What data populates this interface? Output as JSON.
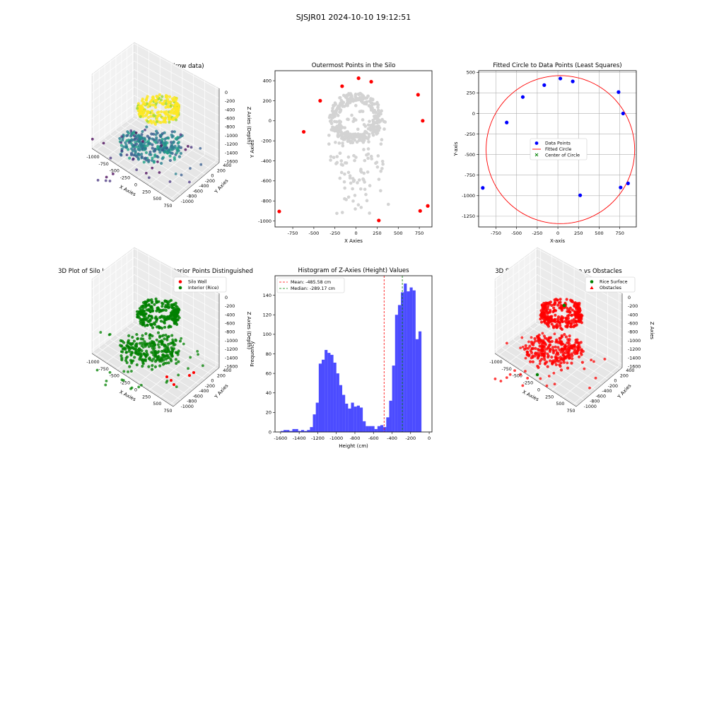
{
  "suptitle": "SJSJR01 2024-10-10 19:12:51",
  "chart_data": [
    {
      "id": "p1",
      "type": "scatter",
      "projection": "3d",
      "title": "3D Plot of Silo Interior(row data)",
      "xlabel": "X Axies",
      "ylabel": "Y Axies",
      "zlabel": "Z Axies (Depth)",
      "xticks": [
        "-1000",
        "-750",
        "-500",
        "-250",
        "0",
        "250",
        "500",
        "750"
      ],
      "yticks": [
        "400",
        "200",
        "0",
        "-200",
        "-400",
        "-600",
        "-800",
        "-1000"
      ],
      "zticks": [
        "0",
        "-200",
        "-400",
        "-600",
        "-800",
        "-1000",
        "-1200",
        "-1400",
        "-1600"
      ],
      "colormap": "viridis"
    },
    {
      "id": "p2",
      "type": "scatter",
      "title": "Outermost Points in the Silo",
      "xlabel": "X Axies",
      "ylabel": "Y Axies",
      "xlim": [
        -960,
        900
      ],
      "ylim": [
        -1060,
        500
      ],
      "xticks": [
        -750,
        -500,
        -250,
        0,
        250,
        500,
        750
      ],
      "yticks": [
        400,
        200,
        0,
        -200,
        -400,
        -600,
        -800,
        -1000
      ],
      "interior_color": "#d3d3d3",
      "outer_color": "#ff0000",
      "outer_points": [
        {
          "x": 30,
          "y": 425
        },
        {
          "x": 180,
          "y": 390
        },
        {
          "x": -165,
          "y": 345
        },
        {
          "x": -425,
          "y": 200
        },
        {
          "x": 735,
          "y": 260
        },
        {
          "x": 790,
          "y": 0
        },
        {
          "x": -620,
          "y": -110
        },
        {
          "x": 850,
          "y": -850
        },
        {
          "x": 760,
          "y": -900
        },
        {
          "x": 270,
          "y": -995
        },
        {
          "x": -910,
          "y": -905
        }
      ]
    },
    {
      "id": "p3",
      "type": "scatter",
      "title": "Fitted Circle to Data Points (Least Squares)",
      "xlabel": "X-axis",
      "ylabel": "Y-axis",
      "xlim": [
        -960,
        950
      ],
      "ylim": [
        -1380,
        520
      ],
      "xticks": [
        -750,
        -500,
        -250,
        0,
        250,
        500,
        750
      ],
      "yticks": [
        500,
        250,
        0,
        -250,
        -500,
        -750,
        -1000,
        -1250
      ],
      "grid": true,
      "legend": {
        "position": "center-right",
        "entries": [
          "Data Points",
          "Fitted Circle",
          "Center of Circle"
        ]
      },
      "points": [
        {
          "x": 30,
          "y": 425
        },
        {
          "x": 180,
          "y": 390
        },
        {
          "x": -165,
          "y": 345
        },
        {
          "x": -425,
          "y": 200
        },
        {
          "x": 735,
          "y": 260
        },
        {
          "x": 790,
          "y": 0
        },
        {
          "x": -620,
          "y": -110
        },
        {
          "x": 850,
          "y": -850
        },
        {
          "x": 760,
          "y": -900
        },
        {
          "x": 270,
          "y": -995
        },
        {
          "x": -910,
          "y": -905
        }
      ],
      "circle": {
        "cx": 30,
        "cy": -440,
        "r": 900
      },
      "colors": {
        "points": "#0000ff",
        "circle": "#ff0000",
        "center": "#008000"
      }
    },
    {
      "id": "p4",
      "type": "scatter",
      "projection": "3d",
      "title": "3D Plot of Silo Interior with Wall and Interior Points Distinguished",
      "xlabel": "X Axies",
      "ylabel": "Y Axies",
      "zlabel": "Z Axies (Depth)",
      "xticks": [
        "-1000",
        "-750",
        "-500",
        "-250",
        "0",
        "250",
        "500",
        "750"
      ],
      "yticks": [
        "400",
        "200",
        "0",
        "-200",
        "-400",
        "-600",
        "-800",
        "-1000"
      ],
      "zticks": [
        "0",
        "-200",
        "-400",
        "-600",
        "-800",
        "-1000",
        "-1200",
        "-1400",
        "-1600"
      ],
      "legend": {
        "position": "top-right",
        "entries": [
          "Silo Wall",
          "Interior (Rice)"
        ]
      },
      "colors": {
        "wall": "#ff0000",
        "interior": "#008000"
      }
    },
    {
      "id": "p5",
      "type": "bar",
      "title": "Histogram of Z-Axies (Height) Values",
      "xlabel": "Height (cm)",
      "ylabel": "Frequency",
      "xlim": [
        -1660,
        30
      ],
      "ylim": [
        0,
        160
      ],
      "xticks": [
        -1600,
        -1400,
        -1200,
        -1000,
        -800,
        -600,
        -400,
        -200,
        0
      ],
      "yticks": [
        0,
        20,
        40,
        60,
        80,
        100,
        120,
        140
      ],
      "bin_start": -1600,
      "bin_width": 31.6,
      "values": [
        1,
        2,
        2,
        1,
        3,
        3,
        1,
        2,
        1,
        2,
        5,
        18,
        30,
        70,
        74,
        84,
        81,
        79,
        71,
        60,
        48,
        38,
        29,
        24,
        30,
        26,
        27,
        25,
        11,
        6,
        6,
        6,
        3,
        6,
        7,
        5,
        15,
        32,
        68,
        120,
        130,
        143,
        152,
        144,
        148,
        145,
        95,
        103
      ],
      "bar_color": "#0000ff",
      "mean": -485.58,
      "median": -289.17,
      "legend": {
        "position": "top-left",
        "entries": [
          "Mean: -485.58 cm",
          "Median: -289.17 cm"
        ]
      }
    },
    {
      "id": "p6",
      "type": "scatter",
      "projection": "3d",
      "title": "3D Scatter Plot: Rice Surface vs Obstacles",
      "xlabel": "X Axies",
      "ylabel": "Y Axies",
      "zlabel": "Z Axies",
      "xticks": [
        "-1000",
        "-750",
        "-500",
        "-250",
        "0",
        "250",
        "500",
        "750"
      ],
      "yticks": [
        "400",
        "200",
        "0",
        "-200",
        "-400",
        "-600",
        "-800",
        "-1000"
      ],
      "zticks": [
        "0",
        "-200",
        "-400",
        "-600",
        "-800",
        "-1000",
        "-1200",
        "-1400",
        "-1600"
      ],
      "legend": {
        "position": "top-right",
        "entries": [
          "Rice Surface",
          "Obstacles"
        ]
      },
      "colors": {
        "surface": "#008000",
        "obstacles": "#ff0000"
      }
    }
  ]
}
